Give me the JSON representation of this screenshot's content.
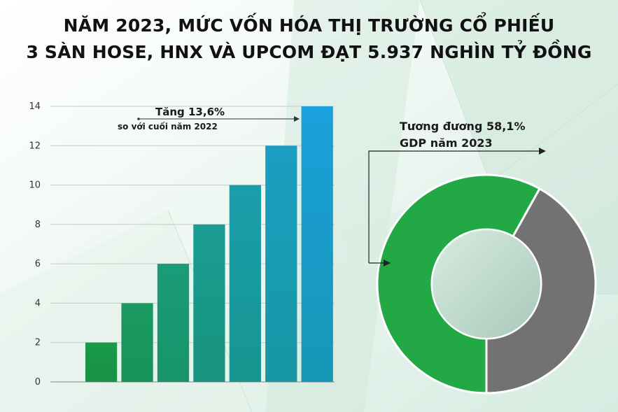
{
  "title": {
    "line1": "NĂM 2023, MỨC VỐN HÓA THỊ TRƯỜNG CỔ PHIẾU",
    "line2": "3 SÀN HOSE, HNX VÀ UPCOM ĐẠT 5.937 NGHÌN TỶ ĐỒNG"
  },
  "chart_data": [
    {
      "type": "bar",
      "categories": [
        "",
        "",
        "",
        "",
        "",
        "",
        ""
      ],
      "values": [
        2,
        4,
        6,
        8,
        10,
        12,
        14
      ],
      "yticks": [
        0,
        2,
        4,
        6,
        8,
        10,
        12,
        14
      ],
      "ylim": [
        0,
        14
      ],
      "grid": true,
      "colors": {
        "start": "#1a9a48",
        "end": "#1aa0dc"
      },
      "annotation": {
        "line1": "Tăng 13,6%",
        "line2": "so với cuối năm 2022"
      }
    },
    {
      "type": "pie",
      "style": "donut",
      "slices": [
        {
          "label": "",
          "value": 58.1,
          "color": "#22a844"
        },
        {
          "label": "",
          "value": 41.9,
          "color": "#727272"
        }
      ],
      "annotation": {
        "line1": "Tương đương 58,1%",
        "line2": "GDP năm 2023"
      }
    }
  ]
}
